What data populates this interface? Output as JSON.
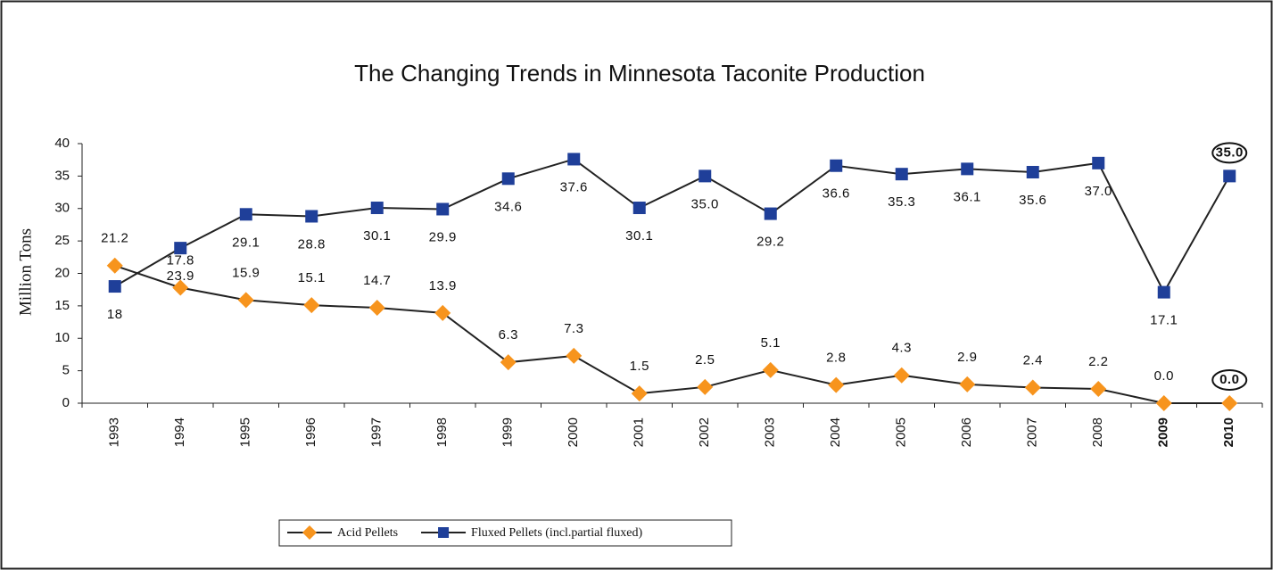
{
  "chart_data": {
    "type": "line",
    "title": "The Changing Trends in Minnesota Taconite Production",
    "y_label": "Million Tons",
    "categories": [
      "1993",
      "1994",
      "1995",
      "1996",
      "1997",
      "1998",
      "1999",
      "2000",
      "2001",
      "2002",
      "2003",
      "2004",
      "2005",
      "2006",
      "2007",
      "2008",
      "2009",
      "2010"
    ],
    "series": [
      {
        "name": "Acid Pellets",
        "color": "#f7941d",
        "marker": "diamond",
        "values": [
          21.2,
          17.8,
          15.9,
          15.1,
          14.7,
          13.9,
          6.3,
          7.3,
          1.5,
          2.5,
          5.1,
          2.8,
          4.3,
          2.9,
          2.4,
          2.2,
          0,
          0
        ],
        "value_labels": [
          "21.2",
          "17.8",
          "15.9",
          "15.1",
          "14.7",
          "13.9",
          "6.3",
          "7.3",
          "1.5",
          "2.5",
          "5.1",
          "2.8",
          "4.3",
          "2.9",
          "2.4",
          "2.2",
          "0.0",
          "0.0"
        ]
      },
      {
        "name": "Fluxed Pellets (incl.partial fluxed)",
        "color": "#1f3f99",
        "marker": "square",
        "values": [
          18,
          23.9,
          29.1,
          28.8,
          30.1,
          29.9,
          34.6,
          37.6,
          30.1,
          35.0,
          29.2,
          36.6,
          35.3,
          36.1,
          35.6,
          37.0,
          17.1,
          35.0
        ],
        "value_labels": [
          "18",
          "23.9",
          "29.1",
          "28.8",
          "30.1",
          "29.9",
          "34.6",
          "37.6",
          "30.1",
          "35.0",
          "29.2",
          "36.6",
          "35.3",
          "36.1",
          "35.6",
          "37.0",
          "17.1",
          "35.0"
        ]
      }
    ],
    "ylim": [
      0,
      40
    ],
    "yticks": [
      0,
      5,
      10,
      15,
      20,
      25,
      30,
      35,
      40
    ],
    "legend": "bottom"
  }
}
